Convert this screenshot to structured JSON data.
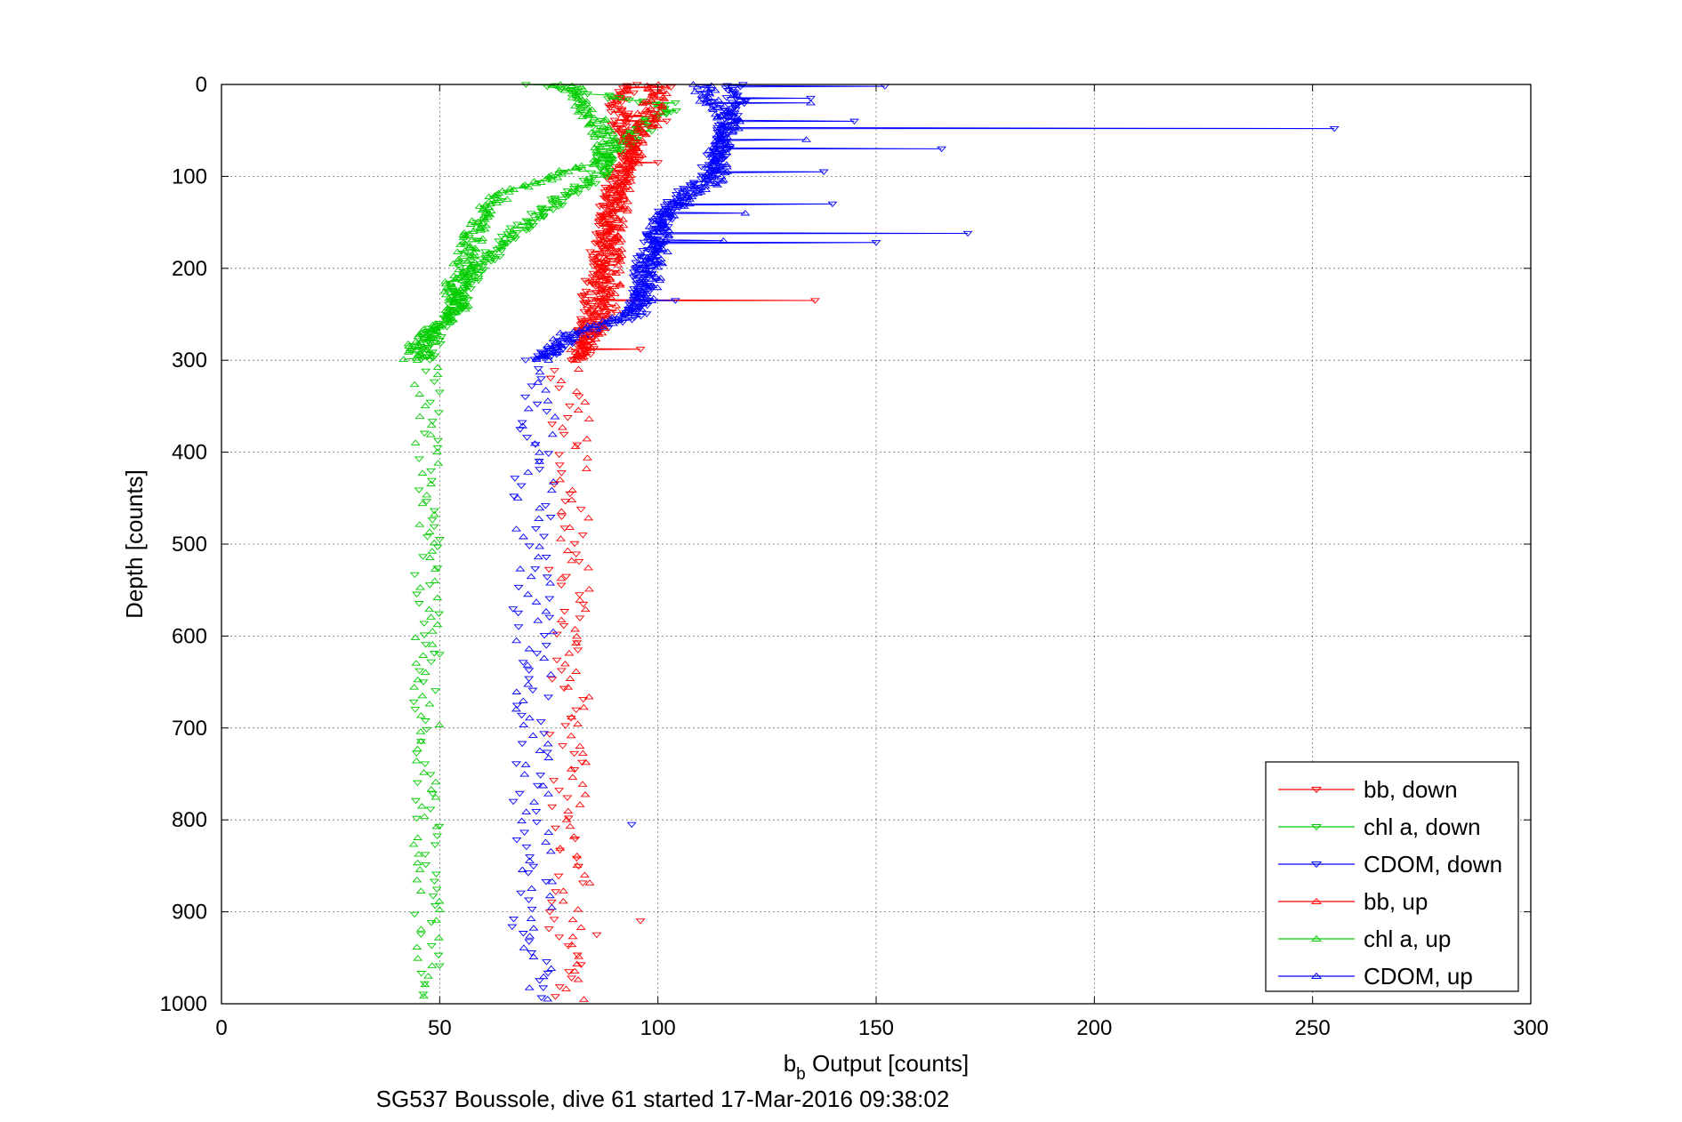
{
  "chart_data": {
    "type": "scatter",
    "title": "",
    "caption": "SG537 Boussole, dive 61 started 17-Mar-2016 09:38:02",
    "xlabel_base": "b",
    "xlabel_sub": "b",
    "xlabel_rest": " Output [counts]",
    "ylabel": "Depth [counts]",
    "xlim": [
      0,
      300
    ],
    "ylim": [
      0,
      1000
    ],
    "y_reversed": true,
    "grid": true,
    "legend_position": "bottom-right",
    "xticks": [
      "0",
      "50",
      "100",
      "150",
      "200",
      "250",
      "300"
    ],
    "yticks": [
      "0",
      "100",
      "200",
      "300",
      "400",
      "500",
      "600",
      "700",
      "800",
      "900",
      "1000"
    ],
    "series": [
      {
        "name": "bb, down",
        "color": "#ff0000",
        "marker": "triangle-down",
        "line": true,
        "profile": [
          [
            0,
            93
          ],
          [
            20,
            91
          ],
          [
            40,
            91
          ],
          [
            60,
            93
          ],
          [
            80,
            94
          ],
          [
            100,
            90
          ],
          [
            120,
            89
          ],
          [
            150,
            88
          ],
          [
            180,
            87
          ],
          [
            200,
            86
          ],
          [
            230,
            85
          ],
          [
            260,
            84
          ],
          [
            290,
            84
          ],
          [
            300,
            83
          ]
        ],
        "spikes": [
          [
            3,
            103
          ],
          [
            35,
            99
          ],
          [
            40,
            102
          ],
          [
            85,
            100
          ],
          [
            235,
            136
          ],
          [
            288,
            96
          ]
        ]
      },
      {
        "name": "chl a, down",
        "color": "#00cc00",
        "marker": "triangle-down",
        "line": true,
        "profile": [
          [
            0,
            72
          ],
          [
            5,
            80
          ],
          [
            15,
            90
          ],
          [
            25,
            103
          ],
          [
            40,
            99
          ],
          [
            60,
            94
          ],
          [
            80,
            88
          ],
          [
            100,
            87
          ],
          [
            110,
            83
          ],
          [
            130,
            76
          ],
          [
            150,
            70
          ],
          [
            170,
            65
          ],
          [
            190,
            61
          ],
          [
            210,
            57
          ],
          [
            230,
            55
          ],
          [
            250,
            52
          ],
          [
            270,
            49
          ],
          [
            290,
            47
          ],
          [
            300,
            46
          ]
        ],
        "spikes": [
          [
            20,
            104
          ],
          [
            30,
            103
          ]
        ]
      },
      {
        "name": "CDOM, down",
        "color": "#0000ff",
        "marker": "triangle-down",
        "line": true,
        "profile": [
          [
            0,
            118
          ],
          [
            20,
            118
          ],
          [
            40,
            116
          ],
          [
            60,
            115
          ],
          [
            80,
            113
          ],
          [
            100,
            111
          ],
          [
            120,
            106
          ],
          [
            140,
            102
          ],
          [
            160,
            100
          ],
          [
            180,
            98
          ],
          [
            200,
            97
          ],
          [
            220,
            96
          ],
          [
            250,
            95
          ],
          [
            270,
            84
          ],
          [
            290,
            76
          ],
          [
            300,
            73
          ]
        ],
        "spikes": [
          [
            2,
            152
          ],
          [
            15,
            135
          ],
          [
            40,
            145
          ],
          [
            48,
            255
          ],
          [
            70,
            165
          ],
          [
            95,
            138
          ],
          [
            130,
            140
          ],
          [
            162,
            171
          ],
          [
            172,
            150
          ],
          [
            235,
            104
          ]
        ]
      },
      {
        "name": "bb, up",
        "color": "#ff0000",
        "marker": "triangle-up",
        "line": true,
        "profile": [
          [
            0,
            100
          ],
          [
            20,
            99
          ],
          [
            50,
            96
          ],
          [
            80,
            94
          ],
          [
            100,
            92
          ],
          [
            150,
            90
          ],
          [
            200,
            89
          ],
          [
            230,
            89
          ],
          [
            250,
            88
          ],
          [
            270,
            85
          ],
          [
            290,
            82
          ],
          [
            300,
            80
          ]
        ],
        "spikes": [
          [
            10,
            102
          ],
          [
            45,
            100
          ]
        ]
      },
      {
        "name": "chl a, up",
        "color": "#00cc00",
        "marker": "triangle-up",
        "line": true,
        "profile": [
          [
            0,
            80
          ],
          [
            20,
            82
          ],
          [
            40,
            86
          ],
          [
            60,
            88
          ],
          [
            80,
            88
          ],
          [
            90,
            82
          ],
          [
            100,
            76
          ],
          [
            120,
            64
          ],
          [
            140,
            60
          ],
          [
            160,
            58
          ],
          [
            190,
            56
          ],
          [
            220,
            53
          ],
          [
            240,
            55
          ],
          [
            260,
            50
          ],
          [
            280,
            45
          ],
          [
            300,
            44
          ]
        ],
        "spikes": []
      },
      {
        "name": "CDOM, up",
        "color": "#0000ff",
        "marker": "triangle-up",
        "line": true,
        "profile": [
          [
            0,
            110
          ],
          [
            20,
            112
          ],
          [
            40,
            117
          ],
          [
            60,
            115
          ],
          [
            80,
            113
          ],
          [
            100,
            114
          ],
          [
            120,
            108
          ],
          [
            140,
            102
          ],
          [
            160,
            100
          ],
          [
            180,
            100
          ],
          [
            200,
            99
          ],
          [
            230,
            97
          ],
          [
            250,
            94
          ],
          [
            260,
            88
          ],
          [
            270,
            80
          ],
          [
            290,
            75
          ],
          [
            300,
            74
          ]
        ],
        "spikes": [
          [
            20,
            135
          ],
          [
            60,
            134
          ],
          [
            140,
            120
          ],
          [
            170,
            115
          ]
        ]
      }
    ],
    "deep_scatter": [
      {
        "series": 0,
        "center": 79,
        "spread": 4,
        "outliers": [
          [
            910,
            96
          ],
          [
            925,
            86
          ]
        ]
      },
      {
        "series": 1,
        "center": 47,
        "spread": 3,
        "outliers": [
          [
            495,
            50
          ],
          [
            620,
            50
          ]
        ]
      },
      {
        "series": 2,
        "center": 71,
        "spread": 4.5,
        "outliers": [
          [
            575,
            68
          ],
          [
            805,
            94
          ]
        ]
      },
      {
        "series": 3,
        "center": 81,
        "spread": 3.5,
        "outliers": []
      },
      {
        "series": 4,
        "center": 47,
        "spread": 3,
        "outliers": []
      },
      {
        "series": 5,
        "center": 72,
        "spread": 4.5,
        "outliers": []
      }
    ]
  }
}
